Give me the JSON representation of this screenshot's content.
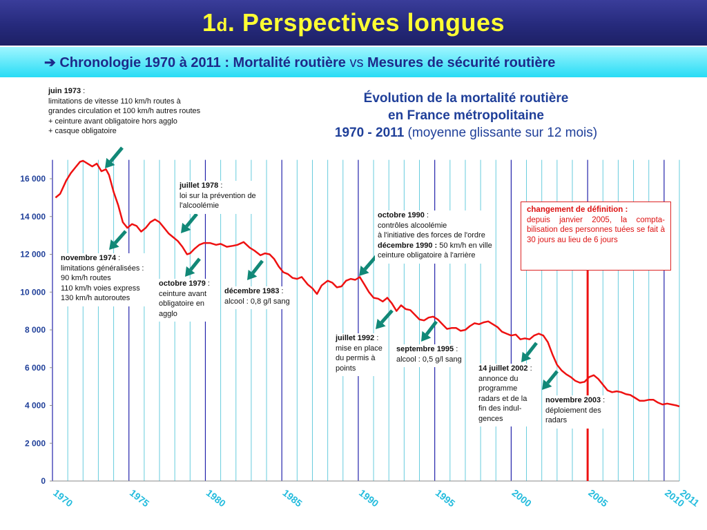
{
  "header": {
    "title_main": "1",
    "title_small": "d",
    "title_rest": ". Perspectives longues",
    "subtitle_arrow": "➔",
    "subtitle_a": "Chronologie 1970 à 2011 : Mortalité routière",
    "subtitle_vs": "vs",
    "subtitle_b": "Mesures de sécurité routière"
  },
  "colors": {
    "title_bg": "#262a7c",
    "title_text": "#ffff33",
    "subtitle_bg": "#28dcf5",
    "subtitle_text": "#1d2a8a",
    "line": "#ee1111",
    "grid_year": "#66ccdd",
    "grid_5year": "#2222aa",
    "arrow": "#118877",
    "x_labels": "#22bbdd",
    "y_labels": "#1f3f99",
    "chart_title": "#1f3f99"
  },
  "annotations": {
    "a1973": {
      "head": "juin 1973",
      "suffix": " :",
      "lines": [
        "limitations de vitesse 110 km/h routes à",
        "grandes circulation et 100 km/h autres routes",
        "+ ceinture avant obligatoire hors agglo",
        "+ casque obligatoire"
      ]
    },
    "a1974": {
      "head": "novembre 1974",
      "suffix": " :",
      "lines": [
        "limitations généralisées :",
        "90 km/h routes",
        "110 km/h voies express",
        "130 km/h autoroutes"
      ]
    },
    "a1978": {
      "head": "juillet 1978",
      "suffix": " :",
      "lines": [
        "loi sur la prévention de",
        "l'alcoolémie"
      ]
    },
    "a1979": {
      "head": "octobre 1979",
      "suffix": " :",
      "lines": [
        "ceinture avant",
        "obligatoire en",
        "agglo"
      ]
    },
    "a1983": {
      "head": "décembre 1983",
      "suffix": " :",
      "lines": [
        "alcool : 0,8 g/l sang"
      ]
    },
    "a1990": {
      "head": "octobre 1990",
      "suffix": " :",
      "lines": [
        "contrôles alcoolémie",
        "à l'initiative des forces de l'ordre"
      ],
      "head2": "décembre 1990 :",
      "line2a": " 50 km/h en ville",
      "line2b": "ceinture  obligatoire à l'arrière"
    },
    "a1992": {
      "head": "juillet 1992",
      "suffix": " :",
      "lines": [
        "mise en place",
        "du permis à",
        "points"
      ]
    },
    "a1995": {
      "head": "septembre 1995",
      "suffix": " :",
      "lines": [
        "alcool : 0,5 g/l sang"
      ]
    },
    "a2002": {
      "head": "14 juillet 2002",
      "suffix": " :",
      "lines": [
        "annonce du",
        "programme",
        "radars et de la",
        "fin des indul-",
        "gences"
      ]
    },
    "a2003": {
      "head": "novembre 2003",
      "suffix": " :",
      "lines": [
        "déploiement des",
        "radars"
      ]
    },
    "definition": {
      "head": "changement de définition :",
      "body": "depuis janvier 2005, la compta-bilisation  des personnes tuées se fait à 30 jours au lieu de 6 jours"
    }
  },
  "chart_data": {
    "type": "line",
    "title_line1": "Évolution de la mortalité routière",
    "title_line2": "en France métropolitaine",
    "title_line3": "1970 - 2011",
    "title_line3_paren": " (moyenne glissante sur 12 mois)",
    "xlabel": "",
    "ylabel": "",
    "xlim": [
      1970,
      2011
    ],
    "ylim": [
      0,
      17000
    ],
    "y_ticks": [
      0,
      2000,
      4000,
      6000,
      8000,
      10000,
      12000,
      14000,
      16000
    ],
    "y_tick_labels": [
      "0",
      "2 000",
      "4 000",
      "6 000",
      "8 000",
      "10 000",
      "12 000",
      "14 000",
      "16 000"
    ],
    "x_tick_labels": [
      "1970",
      "1975",
      "1980",
      "1985",
      "1990",
      "1995",
      "2000",
      "2005",
      "2010",
      "2011"
    ],
    "x_tick_values": [
      1970,
      1975,
      1980,
      1985,
      1990,
      1995,
      2000,
      2005,
      2010,
      2011
    ],
    "grid": true,
    "vline_year": 2005,
    "series": [
      {
        "x": [
          1970.2,
          1970.5,
          1970.9,
          1971.2,
          1971.5,
          1971.8,
          1972.0,
          1972.3,
          1972.6,
          1972.9,
          1973.2,
          1973.5,
          1973.7,
          1974.0,
          1974.3,
          1974.6,
          1974.9,
          1975.2,
          1975.5,
          1975.8,
          1976.1,
          1976.4,
          1976.7,
          1977.0,
          1977.3,
          1977.6,
          1977.9,
          1978.2,
          1978.5,
          1978.8,
          1979.0,
          1979.3,
          1979.6,
          1979.9,
          1980.3,
          1980.7,
          1981.0,
          1981.4,
          1981.8,
          1982.1,
          1982.5,
          1982.9,
          1983.2,
          1983.6,
          1983.9,
          1984.2,
          1984.5,
          1984.8,
          1985.1,
          1985.4,
          1985.7,
          1986.0,
          1986.3,
          1986.7,
          1987.0,
          1987.3,
          1987.6,
          1988.0,
          1988.3,
          1988.6,
          1988.9,
          1989.2,
          1989.5,
          1989.8,
          1990.1,
          1990.4,
          1990.7,
          1991.0,
          1991.3,
          1991.6,
          1991.9,
          1992.2,
          1992.5,
          1992.8,
          1993.1,
          1993.4,
          1993.7,
          1994.0,
          1994.3,
          1994.6,
          1994.9,
          1995.2,
          1995.5,
          1995.8,
          1996.1,
          1996.4,
          1996.7,
          1997.0,
          1997.3,
          1997.6,
          1997.9,
          1998.2,
          1998.5,
          1998.8,
          1999.1,
          1999.4,
          1999.7,
          2000.0,
          2000.3,
          2000.6,
          2000.9,
          2001.2,
          2001.5,
          2001.8,
          2002.1,
          2002.4,
          2002.7,
          2003.0,
          2003.3,
          2003.6,
          2003.9,
          2004.2,
          2004.5,
          2004.8,
          2005.1,
          2005.4,
          2005.7,
          2006.0,
          2006.3,
          2006.6,
          2006.9,
          2007.2,
          2007.5,
          2007.8,
          2008.1,
          2008.4,
          2008.7,
          2009.0,
          2009.3,
          2009.6,
          2009.9,
          2010.2,
          2010.5,
          2010.8,
          2011.0
        ],
        "values": [
          15000,
          15200,
          15900,
          16300,
          16600,
          16900,
          16950,
          16800,
          16650,
          16800,
          16400,
          16500,
          16200,
          15300,
          14600,
          13700,
          13400,
          13600,
          13500,
          13200,
          13400,
          13700,
          13850,
          13700,
          13400,
          13100,
          12900,
          12700,
          12400,
          12000,
          12050,
          12300,
          12500,
          12600,
          12600,
          12500,
          12550,
          12400,
          12450,
          12500,
          12650,
          12350,
          12200,
          11950,
          12050,
          12000,
          11750,
          11350,
          11050,
          10950,
          10750,
          10700,
          10800,
          10400,
          10200,
          9900,
          10350,
          10600,
          10500,
          10250,
          10300,
          10600,
          10700,
          10650,
          10800,
          10400,
          10000,
          9700,
          9650,
          9500,
          9700,
          9400,
          9000,
          9300,
          9100,
          9050,
          8800,
          8550,
          8500,
          8650,
          8700,
          8550,
          8300,
          8050,
          8100,
          8100,
          7950,
          8000,
          8200,
          8350,
          8300,
          8400,
          8450,
          8300,
          8150,
          7900,
          7800,
          7700,
          7750,
          7500,
          7550,
          7500,
          7700,
          7800,
          7700,
          7350,
          6700,
          6150,
          5850,
          5650,
          5500,
          5300,
          5200,
          5250,
          5500,
          5600,
          5400,
          5100,
          4800,
          4700,
          4750,
          4700,
          4600,
          4550,
          4400,
          4250,
          4250,
          4300,
          4300,
          4150,
          4050,
          4100,
          4050,
          4000,
          3950
        ],
        "color": "#ee1111"
      }
    ]
  }
}
